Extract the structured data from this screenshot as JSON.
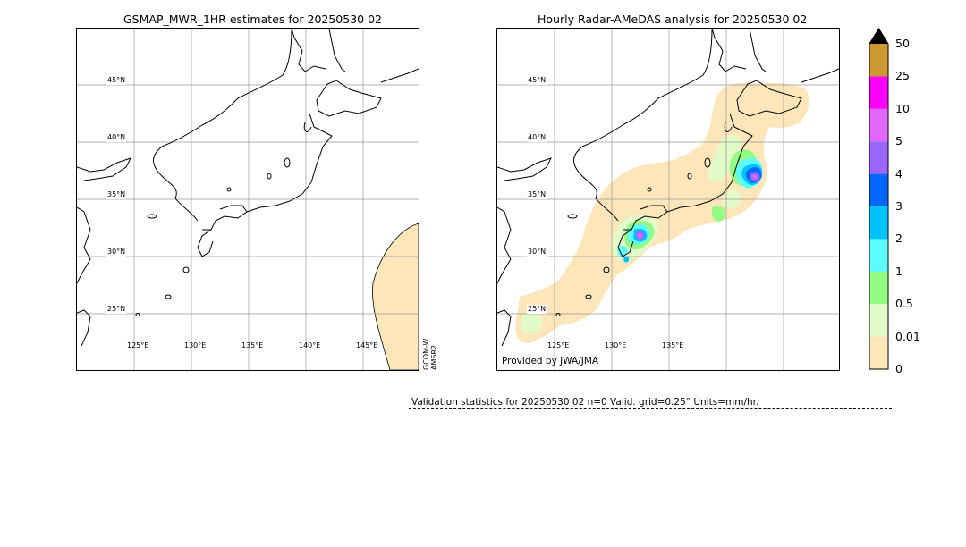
{
  "left_panel": {
    "title": "GSMAP_MWR_1HR estimates for 20250530 02",
    "lat_labels": [
      "45°N",
      "40°N",
      "35°N",
      "30°N",
      "25°N"
    ],
    "lon_labels": [
      "125°E",
      "130°E",
      "135°E",
      "140°E",
      "145°E"
    ],
    "satellite_labels": [
      "GCOM-W",
      "AMSR2"
    ]
  },
  "right_panel": {
    "title": "Hourly Radar-AMeDAS analysis for 20250530 02",
    "lat_labels": [
      "45°N",
      "40°N",
      "35°N",
      "30°N",
      "25°N"
    ],
    "lon_labels": [
      "125°E",
      "130°E",
      "135°E"
    ],
    "credit": "Provided by JWA/JMA"
  },
  "colorbar": {
    "levels": [
      "0",
      "0.01",
      "0.5",
      "1",
      "2",
      "3",
      "4",
      "5",
      "10",
      "25",
      "50"
    ],
    "colors": [
      "#fee6bb",
      "#e1fcc8",
      "#94fc84",
      "#5cfcfc",
      "#00c3fc",
      "#0066fc",
      "#9966fc",
      "#e066fc",
      "#fc00fc",
      "#cd9933"
    ],
    "extend_color": "#000000"
  },
  "validation": {
    "text": "Validation statistics for 20250530 02  n=0 Valid. grid=0.25° Units=mm/hr."
  }
}
